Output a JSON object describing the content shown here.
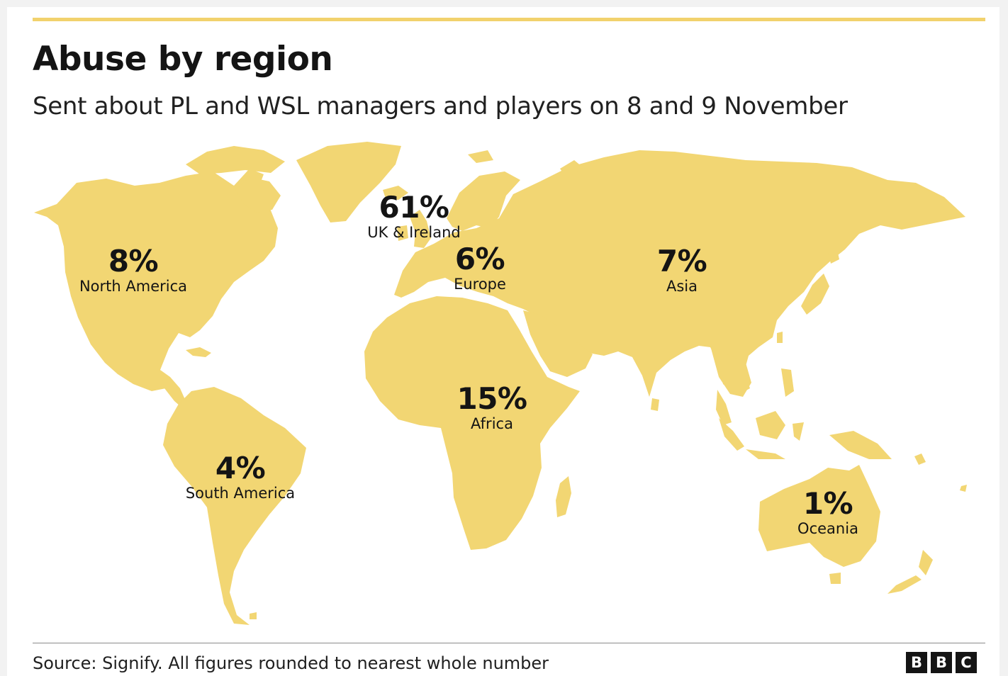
{
  "header": {
    "title": "Abuse by region",
    "subtitle": "Sent about PL and WSL managers and players on 8 and 9 November"
  },
  "regions": [
    {
      "key": "north-america",
      "value": "8%",
      "name": "North America"
    },
    {
      "key": "uk-ireland",
      "value": "61%",
      "name": "UK & Ireland"
    },
    {
      "key": "europe",
      "value": "6%",
      "name": "Europe"
    },
    {
      "key": "asia",
      "value": "7%",
      "name": "Asia"
    },
    {
      "key": "africa",
      "value": "15%",
      "name": "Africa"
    },
    {
      "key": "south-america",
      "value": "4%",
      "name": "South America"
    },
    {
      "key": "oceania",
      "value": "1%",
      "name": "Oceania"
    }
  ],
  "footer": {
    "source": "Source: Signify. All figures rounded to nearest whole number",
    "logo_letters": [
      "B",
      "B",
      "C"
    ]
  },
  "colors": {
    "accent": "#f2d26d",
    "land": "#f2d673",
    "text": "#141414"
  }
}
